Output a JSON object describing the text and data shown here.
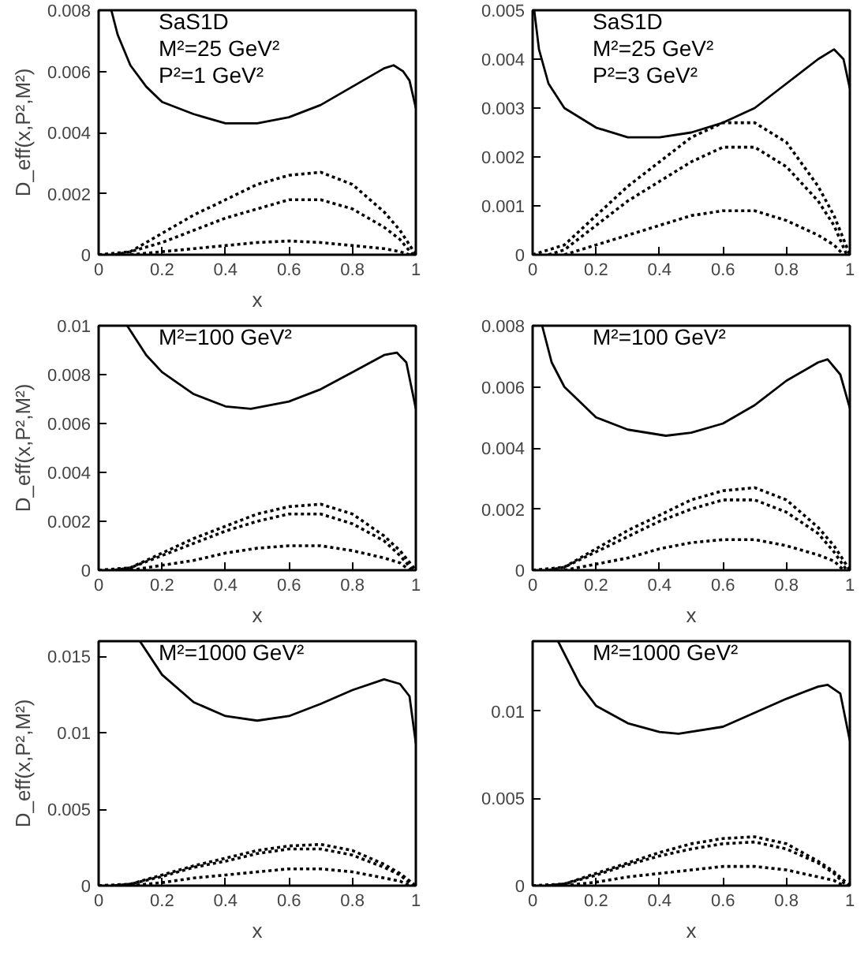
{
  "chart_data": [
    {
      "type": "line",
      "x": [
        0,
        0.1,
        0.2,
        0.3,
        0.4,
        0.5,
        0.6,
        0.7,
        0.8,
        0.9,
        0.95,
        1
      ],
      "xlim": [
        0,
        1
      ],
      "xticks": [
        0,
        0.2,
        0.4,
        0.6,
        0.8,
        1
      ],
      "ylim": [
        0,
        0.008
      ],
      "yticks": [
        0,
        0.002,
        0.004,
        0.006,
        0.008
      ],
      "xlabel": "x",
      "ylabel": "D_eff(x,P²,M²)",
      "annotations": [
        "SaS1D",
        "M²=25 GeV²",
        "P²=1 GeV²"
      ],
      "grid": false,
      "series": [
        {
          "color": "#000000",
          "line_style": "solid",
          "x": [
            0.04,
            0.06,
            0.1,
            0.15,
            0.2,
            0.3,
            0.4,
            0.45,
            0.5,
            0.6,
            0.7,
            0.8,
            0.9,
            0.93,
            0.96,
            0.98,
            1
          ],
          "values": [
            0.008,
            0.0072,
            0.0062,
            0.0055,
            0.005,
            0.0046,
            0.0043,
            0.0043,
            0.0043,
            0.0045,
            0.0049,
            0.0055,
            0.0061,
            0.0062,
            0.006,
            0.0057,
            0.0048
          ]
        },
        {
          "color": "#000000",
          "line_style": "dotted",
          "values": [
            0,
            0.0001,
            0.0007,
            0.0013,
            0.0018,
            0.0023,
            0.0026,
            0.0027,
            0.0023,
            0.0014,
            0.0008,
            0
          ]
        },
        {
          "color": "#000000",
          "line_style": "dotted",
          "x": [
            0.05,
            0.1,
            0.2,
            0.3,
            0.4,
            0.5,
            0.6,
            0.7,
            0.8,
            0.9,
            0.95,
            0.99
          ],
          "values": [
            0,
            0.0001,
            0.0004,
            0.0008,
            0.0012,
            0.0015,
            0.0018,
            0.0018,
            0.0015,
            0.0009,
            0.0005,
            0
          ]
        },
        {
          "color": "#000000",
          "line_style": "dotted",
          "x": [
            0.1,
            0.2,
            0.3,
            0.4,
            0.5,
            0.6,
            0.7,
            0.8,
            0.9,
            0.95,
            0.98
          ],
          "values": [
            0,
            0.0001,
            0.0002,
            0.0003,
            0.0004,
            0.00045,
            0.0004,
            0.0003,
            0.0002,
            0.0001,
            0
          ]
        }
      ]
    },
    {
      "type": "line",
      "x": [
        0,
        0.1,
        0.2,
        0.3,
        0.4,
        0.5,
        0.6,
        0.7,
        0.8,
        0.9,
        0.95,
        1
      ],
      "xlim": [
        0,
        1
      ],
      "xticks": [
        0,
        0.2,
        0.4,
        0.6,
        0.8,
        1
      ],
      "ylim": [
        0,
        0.005
      ],
      "yticks": [
        0,
        0.001,
        0.002,
        0.003,
        0.004,
        0.005
      ],
      "annotations": [
        "SaS1D",
        "M²=25 GeV²",
        "P²=3 GeV²"
      ],
      "grid": false,
      "series": [
        {
          "color": "#000000",
          "line_style": "solid",
          "x": [
            0.005,
            0.02,
            0.05,
            0.1,
            0.2,
            0.3,
            0.4,
            0.5,
            0.6,
            0.7,
            0.8,
            0.9,
            0.95,
            0.98,
            1
          ],
          "values": [
            0.005,
            0.0042,
            0.0035,
            0.003,
            0.0026,
            0.0024,
            0.0024,
            0.0025,
            0.0027,
            0.003,
            0.0035,
            0.004,
            0.0042,
            0.004,
            0.0034
          ]
        },
        {
          "color": "#000000",
          "line_style": "dotted",
          "values": [
            0,
            0.0002,
            0.0008,
            0.0014,
            0.0019,
            0.0024,
            0.0027,
            0.0027,
            0.0023,
            0.0014,
            0.0008,
            0
          ]
        },
        {
          "color": "#000000",
          "line_style": "dotted",
          "x": [
            0.05,
            0.1,
            0.2,
            0.3,
            0.4,
            0.5,
            0.6,
            0.7,
            0.8,
            0.9,
            0.95,
            0.99
          ],
          "values": [
            0,
            0.0001,
            0.0006,
            0.0011,
            0.0015,
            0.0019,
            0.0022,
            0.0022,
            0.0018,
            0.0011,
            0.0006,
            0
          ]
        },
        {
          "color": "#000000",
          "line_style": "dotted",
          "x": [
            0.1,
            0.2,
            0.3,
            0.4,
            0.5,
            0.6,
            0.7,
            0.8,
            0.9,
            0.95,
            0.98
          ],
          "values": [
            0,
            0.0002,
            0.0004,
            0.0006,
            0.0008,
            0.0009,
            0.0009,
            0.0007,
            0.0004,
            0.0002,
            0
          ]
        }
      ]
    },
    {
      "type": "line",
      "x": [
        0,
        0.1,
        0.2,
        0.3,
        0.4,
        0.5,
        0.6,
        0.7,
        0.8,
        0.9,
        0.95,
        1
      ],
      "xlim": [
        0,
        1
      ],
      "xticks": [
        0,
        0.2,
        0.4,
        0.6,
        0.8,
        1
      ],
      "ylim": [
        0,
        0.01
      ],
      "yticks": [
        0,
        0.002,
        0.004,
        0.006,
        0.008,
        0.01
      ],
      "xlabel": "x",
      "ylabel": "D_eff(x,P²,M²)",
      "annotations": [
        "M²=100 GeV²"
      ],
      "grid": false,
      "series": [
        {
          "color": "#000000",
          "line_style": "solid",
          "x": [
            0.09,
            0.15,
            0.2,
            0.3,
            0.4,
            0.48,
            0.6,
            0.7,
            0.8,
            0.9,
            0.94,
            0.97,
            1
          ],
          "values": [
            0.01,
            0.0088,
            0.0081,
            0.0072,
            0.0067,
            0.0066,
            0.0069,
            0.0074,
            0.0081,
            0.0088,
            0.0089,
            0.0085,
            0.0066
          ]
        },
        {
          "color": "#000000",
          "line_style": "dotted",
          "values": [
            0,
            0.0001,
            0.0007,
            0.0013,
            0.0018,
            0.0023,
            0.0026,
            0.0027,
            0.0023,
            0.0014,
            0.0008,
            0
          ]
        },
        {
          "color": "#000000",
          "line_style": "dotted",
          "x": [
            0.05,
            0.1,
            0.2,
            0.3,
            0.4,
            0.5,
            0.6,
            0.7,
            0.8,
            0.9,
            0.95,
            0.99
          ],
          "values": [
            0,
            0.0001,
            0.0006,
            0.0011,
            0.0016,
            0.002,
            0.0023,
            0.0023,
            0.0019,
            0.0012,
            0.0006,
            0
          ]
        },
        {
          "color": "#000000",
          "line_style": "dotted",
          "x": [
            0.1,
            0.2,
            0.3,
            0.4,
            0.5,
            0.6,
            0.7,
            0.8,
            0.9,
            0.95,
            0.98
          ],
          "values": [
            0,
            0.0002,
            0.0004,
            0.0007,
            0.0009,
            0.001,
            0.001,
            0.0008,
            0.0005,
            0.0003,
            0
          ]
        }
      ]
    },
    {
      "type": "line",
      "x": [
        0,
        0.1,
        0.2,
        0.3,
        0.4,
        0.5,
        0.6,
        0.7,
        0.8,
        0.9,
        0.95,
        1
      ],
      "xlim": [
        0,
        1
      ],
      "xticks": [
        0,
        0.2,
        0.4,
        0.6,
        0.8,
        1
      ],
      "ylim": [
        0,
        0.008
      ],
      "yticks": [
        0,
        0.002,
        0.004,
        0.006,
        0.008
      ],
      "xlabel": "x",
      "annotations": [
        "M²=100 GeV²"
      ],
      "grid": false,
      "series": [
        {
          "color": "#000000",
          "line_style": "solid",
          "x": [
            0.03,
            0.06,
            0.1,
            0.2,
            0.3,
            0.42,
            0.5,
            0.6,
            0.7,
            0.8,
            0.9,
            0.93,
            0.97,
            1
          ],
          "values": [
            0.008,
            0.0068,
            0.006,
            0.005,
            0.0046,
            0.0044,
            0.0045,
            0.0048,
            0.0054,
            0.0062,
            0.0068,
            0.0069,
            0.0064,
            0.0053
          ]
        },
        {
          "color": "#000000",
          "line_style": "dotted",
          "values": [
            0,
            0.0001,
            0.0007,
            0.0013,
            0.0018,
            0.0023,
            0.0026,
            0.0027,
            0.0023,
            0.0014,
            0.0008,
            0
          ]
        },
        {
          "color": "#000000",
          "line_style": "dotted",
          "x": [
            0.05,
            0.1,
            0.2,
            0.3,
            0.4,
            0.5,
            0.6,
            0.7,
            0.8,
            0.9,
            0.95,
            0.99
          ],
          "values": [
            0,
            0.0001,
            0.0006,
            0.0011,
            0.0016,
            0.002,
            0.0023,
            0.0023,
            0.0019,
            0.0012,
            0.0006,
            0
          ]
        },
        {
          "color": "#000000",
          "line_style": "dotted",
          "x": [
            0.1,
            0.2,
            0.3,
            0.4,
            0.5,
            0.6,
            0.7,
            0.8,
            0.9,
            0.95,
            0.98
          ],
          "values": [
            0,
            0.0002,
            0.0004,
            0.0007,
            0.0009,
            0.001,
            0.001,
            0.0008,
            0.0005,
            0.0003,
            0
          ]
        }
      ]
    },
    {
      "type": "line",
      "x": [
        0,
        0.1,
        0.2,
        0.3,
        0.4,
        0.5,
        0.6,
        0.7,
        0.8,
        0.9,
        0.95,
        1
      ],
      "xlim": [
        0,
        1
      ],
      "xticks": [
        0,
        0.2,
        0.4,
        0.6,
        0.8,
        1
      ],
      "ylim": [
        0,
        0.016
      ],
      "yticks": [
        0,
        0.005,
        0.01,
        0.015
      ],
      "xlabel": "x",
      "ylabel": "D_eff(x,P²,M²)",
      "annotations": [
        "M²=1000 GeV²"
      ],
      "grid": false,
      "series": [
        {
          "color": "#000000",
          "line_style": "solid",
          "x": [
            0.13,
            0.2,
            0.3,
            0.4,
            0.5,
            0.6,
            0.7,
            0.8,
            0.9,
            0.95,
            0.98,
            1
          ],
          "values": [
            0.016,
            0.0138,
            0.012,
            0.0111,
            0.0108,
            0.0111,
            0.0119,
            0.0128,
            0.0135,
            0.0132,
            0.0124,
            0.0093
          ]
        },
        {
          "color": "#000000",
          "line_style": "dotted",
          "values": [
            0,
            0.0001,
            0.0007,
            0.0013,
            0.0018,
            0.0023,
            0.0026,
            0.0027,
            0.0023,
            0.0014,
            0.0008,
            0
          ]
        },
        {
          "color": "#000000",
          "line_style": "dotted",
          "x": [
            0.05,
            0.1,
            0.2,
            0.3,
            0.4,
            0.5,
            0.6,
            0.7,
            0.8,
            0.9,
            0.95,
            0.99
          ],
          "values": [
            0,
            0.0001,
            0.0006,
            0.0012,
            0.0016,
            0.0021,
            0.0024,
            0.0024,
            0.002,
            0.0012,
            0.0007,
            0
          ]
        },
        {
          "color": "#000000",
          "line_style": "dotted",
          "x": [
            0.1,
            0.2,
            0.3,
            0.4,
            0.5,
            0.6,
            0.7,
            0.8,
            0.9,
            0.95,
            0.98
          ],
          "values": [
            0,
            0.0002,
            0.0005,
            0.0007,
            0.0009,
            0.0011,
            0.0011,
            0.0009,
            0.0005,
            0.0003,
            0
          ]
        }
      ]
    },
    {
      "type": "line",
      "x": [
        0,
        0.1,
        0.2,
        0.3,
        0.4,
        0.5,
        0.6,
        0.7,
        0.8,
        0.9,
        0.95,
        1
      ],
      "xlim": [
        0,
        1
      ],
      "xticks": [
        0,
        0.2,
        0.4,
        0.6,
        0.8,
        1
      ],
      "ylim": [
        0,
        0.014
      ],
      "yticks": [
        0,
        0.005,
        0.01
      ],
      "xlabel": "x",
      "annotations": [
        "M²=1000 GeV²"
      ],
      "grid": false,
      "series": [
        {
          "color": "#000000",
          "line_style": "solid",
          "x": [
            0.08,
            0.15,
            0.2,
            0.3,
            0.4,
            0.46,
            0.6,
            0.7,
            0.8,
            0.9,
            0.93,
            0.97,
            1
          ],
          "values": [
            0.014,
            0.0115,
            0.0103,
            0.0093,
            0.0088,
            0.0087,
            0.0091,
            0.0099,
            0.0107,
            0.0114,
            0.0115,
            0.011,
            0.0083
          ]
        },
        {
          "color": "#000000",
          "line_style": "dotted",
          "values": [
            0,
            0.0001,
            0.0007,
            0.0013,
            0.0019,
            0.0024,
            0.0027,
            0.0028,
            0.0024,
            0.0014,
            0.0008,
            0
          ]
        },
        {
          "color": "#000000",
          "line_style": "dotted",
          "x": [
            0.05,
            0.1,
            0.2,
            0.3,
            0.4,
            0.5,
            0.6,
            0.7,
            0.8,
            0.9,
            0.95,
            0.99
          ],
          "values": [
            0,
            0.0001,
            0.0006,
            0.0012,
            0.0017,
            0.0021,
            0.0024,
            0.0025,
            0.0021,
            0.0013,
            0.0007,
            0
          ]
        },
        {
          "color": "#000000",
          "line_style": "dotted",
          "x": [
            0.1,
            0.2,
            0.3,
            0.4,
            0.5,
            0.6,
            0.7,
            0.8,
            0.9,
            0.95,
            0.98
          ],
          "values": [
            0,
            0.0002,
            0.0005,
            0.0007,
            0.0009,
            0.0011,
            0.0011,
            0.0009,
            0.0005,
            0.0003,
            0
          ]
        }
      ]
    }
  ]
}
